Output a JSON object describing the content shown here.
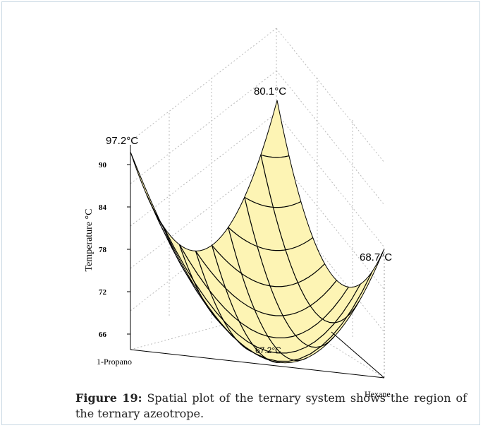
{
  "figure": {
    "corner_labels": [
      "97.2°C",
      "80.1°C",
      "68.7°C",
      "67.2°C"
    ],
    "axis_label": "Temperature °C",
    "axis_ticks": [
      90,
      84,
      78,
      72,
      66
    ],
    "left_component": "1-Propano",
    "right_component": "Hexane"
  },
  "caption": {
    "label": "Figure 19:",
    "text": "Spatial plot of the ternary system shows the region of the ternary azeotrope."
  }
}
